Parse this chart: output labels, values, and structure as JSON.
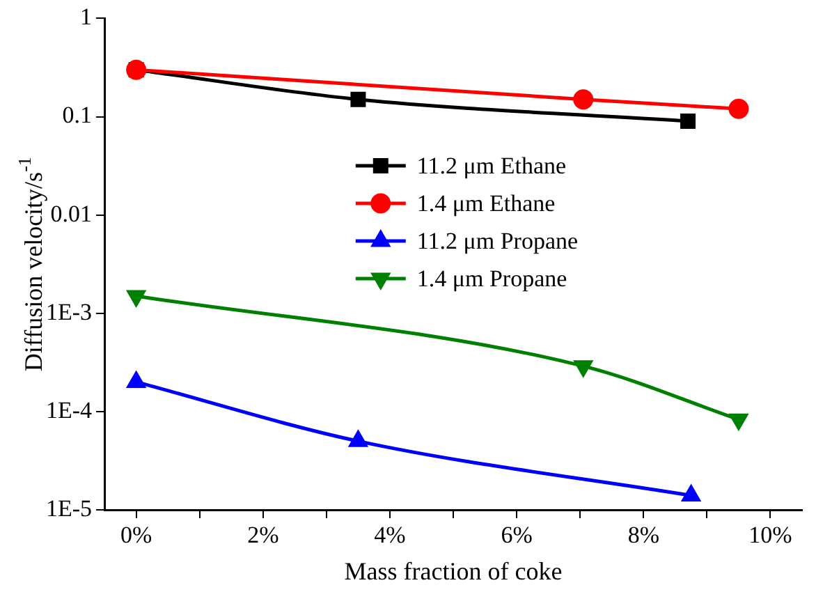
{
  "chart_data": {
    "type": "line",
    "xlabel": "Mass fraction of coke",
    "ylabel": "Diffusion velocity/s$^{-1}$",
    "log": "y",
    "xlim": [
      -0.5,
      10.5
    ],
    "ylim": [
      1e-05,
      1
    ],
    "xticks": [
      {
        "value": 0,
        "label": "0%"
      },
      {
        "value": 1,
        "label": null
      },
      {
        "value": 2,
        "label": "2%"
      },
      {
        "value": 3,
        "label": null
      },
      {
        "value": 4,
        "label": "4%"
      },
      {
        "value": 5,
        "label": null
      },
      {
        "value": 6,
        "label": "6%"
      },
      {
        "value": 7,
        "label": null
      },
      {
        "value": 8,
        "label": "8%"
      },
      {
        "value": 9,
        "label": null
      },
      {
        "value": 10,
        "label": "10%"
      }
    ],
    "yticks": [
      {
        "value": 1e-05,
        "label": "1E-5"
      },
      {
        "value": 0.0001,
        "label": "1E-4"
      },
      {
        "value": 0.001,
        "label": "1E-3"
      },
      0.01,
      0.1,
      1
    ],
    "grid": false,
    "legend": "center right",
    "line_style": "solid",
    "series": [
      {
        "name": "11.2 μm Ethane",
        "color": "#000000",
        "marker": "square",
        "x": [
          0,
          3.5,
          8.7
        ],
        "values": [
          0.3,
          0.15,
          0.09
        ]
      },
      {
        "name": "1.4 μm Ethane",
        "color": "#ff0000",
        "marker": "circle",
        "x": [
          0,
          7.05,
          9.5
        ],
        "values": [
          0.3,
          0.15,
          0.12
        ]
      },
      {
        "name": "11.2 μm Propane",
        "color": "#0000ff",
        "marker": "triangle",
        "x": [
          0,
          3.5,
          8.75
        ],
        "values": [
          0.0002,
          5e-05,
          1.4e-05
        ]
      },
      {
        "name": "1.4 μm Propane",
        "color": "#008000",
        "marker": "triangle-down",
        "x": [
          0,
          7.05,
          9.5
        ],
        "values": [
          0.0015,
          0.00029,
          8.3e-05
        ]
      }
    ]
  }
}
